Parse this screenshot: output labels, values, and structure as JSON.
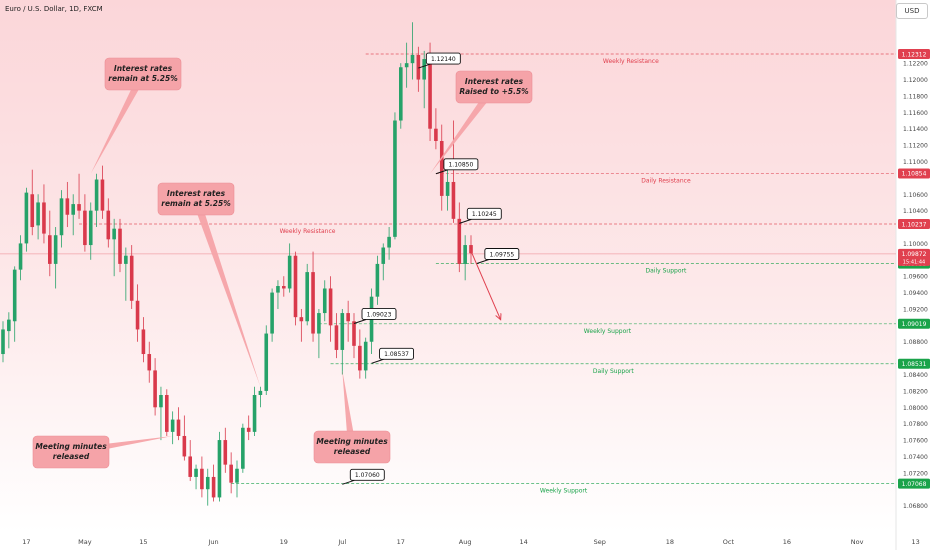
{
  "header": {
    "title": "Euro / U.S. Dollar, 1D, FXCM",
    "currency": "USD"
  },
  "chart_data": {
    "type": "candlestick",
    "symbol": "EURUSD",
    "ylim": [
      1.066,
      1.128
    ],
    "price_ticks": [
      "1.12200",
      "1.12000",
      "1.11800",
      "1.11600",
      "1.11400",
      "1.11200",
      "1.11000",
      "1.10800",
      "1.10600",
      "1.10400",
      "1.10200",
      "1.10000",
      "1.09800",
      "1.09600",
      "1.09400",
      "1.09200",
      "1.09000",
      "1.08800",
      "1.08600",
      "1.08400",
      "1.08200",
      "1.08000",
      "1.07800",
      "1.07600",
      "1.07400",
      "1.07200",
      "1.07000",
      "1.06800"
    ],
    "time_ticks": [
      {
        "label": "17",
        "bar": 4
      },
      {
        "label": "May",
        "bar": 14
      },
      {
        "label": "15",
        "bar": 24
      },
      {
        "label": "Jun",
        "bar": 36
      },
      {
        "label": "19",
        "bar": 48
      },
      {
        "label": "Jul",
        "bar": 58
      },
      {
        "label": "17",
        "bar": 68
      },
      {
        "label": "Aug",
        "bar": 79
      },
      {
        "label": "14",
        "bar": 89
      },
      {
        "label": "Sep",
        "bar": 102
      },
      {
        "label": "18",
        "bar": 114
      },
      {
        "label": "Oct",
        "bar": 124
      },
      {
        "label": "16",
        "bar": 134
      },
      {
        "label": "Nov",
        "bar": 146
      },
      {
        "label": "13",
        "bar": 156
      }
    ],
    "candles": [
      [
        1.0865,
        1.0905,
        1.0855,
        1.0895
      ],
      [
        1.0893,
        1.0916,
        1.0872,
        1.0907
      ],
      [
        1.0905,
        1.0972,
        1.088,
        1.0968
      ],
      [
        1.0968,
        1.101,
        1.0955,
        1.1
      ],
      [
        1.1,
        1.1068,
        1.099,
        1.1062
      ],
      [
        1.106,
        1.109,
        1.101,
        1.102
      ],
      [
        1.1022,
        1.106,
        1.1005,
        1.105
      ],
      [
        1.105,
        1.1072,
        1.1,
        1.1012
      ],
      [
        1.101,
        1.104,
        1.096,
        1.0975
      ],
      [
        1.0975,
        1.102,
        1.0945,
        1.101
      ],
      [
        1.101,
        1.1065,
        1.0995,
        1.1055
      ],
      [
        1.1055,
        1.1075,
        1.102,
        1.1035
      ],
      [
        1.1035,
        1.106,
        1.101,
        1.1048
      ],
      [
        1.1048,
        1.1085,
        1.103,
        1.104
      ],
      [
        1.104,
        1.106,
        1.099,
        1.0998
      ],
      [
        1.0998,
        1.105,
        1.098,
        1.104
      ],
      [
        1.104,
        1.1085,
        1.102,
        1.1078
      ],
      [
        1.1078,
        1.1095,
        1.103,
        1.104
      ],
      [
        1.104,
        1.1055,
        1.0995,
        1.1005
      ],
      [
        1.1005,
        1.103,
        1.096,
        1.1018
      ],
      [
        1.1018,
        1.103,
        1.0965,
        1.0975
      ],
      [
        1.0975,
        1.0995,
        1.093,
        1.0985
      ],
      [
        1.0985,
        1.0998,
        1.092,
        1.093
      ],
      [
        1.093,
        1.095,
        1.088,
        1.0895
      ],
      [
        1.0895,
        1.091,
        1.0855,
        1.0865
      ],
      [
        1.0865,
        1.088,
        1.083,
        1.0845
      ],
      [
        1.0845,
        1.086,
        1.079,
        1.08
      ],
      [
        1.08,
        1.0825,
        1.076,
        1.0815
      ],
      [
        1.0815,
        1.0822,
        1.0765,
        1.077
      ],
      [
        1.077,
        1.0795,
        1.0755,
        1.0785
      ],
      [
        1.0785,
        1.08,
        1.076,
        1.0765
      ],
      [
        1.0765,
        1.079,
        1.0735,
        1.074
      ],
      [
        1.074,
        1.076,
        1.071,
        1.0715
      ],
      [
        1.0715,
        1.073,
        1.07,
        1.0725
      ],
      [
        1.0725,
        1.074,
        1.069,
        1.07
      ],
      [
        1.07,
        1.0725,
        1.068,
        1.0715
      ],
      [
        1.0715,
        1.073,
        1.0685,
        1.069
      ],
      [
        1.069,
        1.077,
        1.0685,
        1.076
      ],
      [
        1.076,
        1.0775,
        1.072,
        1.073
      ],
      [
        1.073,
        1.0745,
        1.0695,
        1.0708
      ],
      [
        1.0708,
        1.0735,
        1.069,
        1.0725
      ],
      [
        1.0725,
        1.078,
        1.072,
        1.0775
      ],
      [
        1.0775,
        1.079,
        1.076,
        1.077
      ],
      [
        1.077,
        1.0825,
        1.0765,
        1.0815
      ],
      [
        1.0815,
        1.0825,
        1.08,
        1.082
      ],
      [
        1.082,
        1.09,
        1.0815,
        1.089
      ],
      [
        1.089,
        1.0945,
        1.088,
        1.094
      ],
      [
        1.094,
        1.0955,
        1.092,
        1.0948
      ],
      [
        1.0948,
        1.096,
        1.0935,
        1.0945
      ],
      [
        1.0945,
        1.1,
        1.094,
        1.0985
      ],
      [
        1.0985,
        1.099,
        1.09,
        1.091
      ],
      [
        1.091,
        1.092,
        1.088,
        1.0905
      ],
      [
        1.0905,
        1.0975,
        1.09,
        1.0965
      ],
      [
        1.0965,
        1.099,
        1.088,
        1.089
      ],
      [
        1.089,
        1.092,
        1.086,
        1.0915
      ],
      [
        1.0915,
        1.0955,
        1.0905,
        1.0945
      ],
      [
        1.0945,
        1.096,
        1.088,
        1.09
      ],
      [
        1.09,
        1.0915,
        1.086,
        1.087
      ],
      [
        1.087,
        1.092,
        1.084,
        1.0915
      ],
      [
        1.0915,
        1.093,
        1.088,
        1.0905
      ],
      [
        1.0905,
        1.0915,
        1.086,
        1.0875
      ],
      [
        1.0875,
        1.0895,
        1.0835,
        1.0845
      ],
      [
        1.0845,
        1.0885,
        1.0835,
        1.088
      ],
      [
        1.088,
        1.0945,
        1.0865,
        1.0935
      ],
      [
        1.0935,
        1.0985,
        1.0925,
        1.0975
      ],
      [
        1.0975,
        1.1,
        1.0955,
        1.0995
      ],
      [
        1.0995,
        1.102,
        1.098,
        1.1008
      ],
      [
        1.1008,
        1.116,
        1.1005,
        1.115
      ],
      [
        1.115,
        1.122,
        1.114,
        1.1215
      ],
      [
        1.1215,
        1.1245,
        1.119,
        1.122
      ],
      [
        1.122,
        1.127,
        1.12,
        1.123
      ],
      [
        1.123,
        1.124,
        1.1185,
        1.12
      ],
      [
        1.12,
        1.1235,
        1.1165,
        1.1225
      ],
      [
        1.1225,
        1.1245,
        1.1125,
        1.114
      ],
      [
        1.114,
        1.1165,
        1.1115,
        1.1125
      ],
      [
        1.1125,
        1.1145,
        1.104,
        1.1058
      ],
      [
        1.1058,
        1.1095,
        1.104,
        1.1075
      ],
      [
        1.1075,
        1.115,
        1.1025,
        1.103
      ],
      [
        1.103,
        1.105,
        1.0965,
        1.0975
      ],
      [
        1.0975,
        1.101,
        1.0955,
        1.0998
      ],
      [
        1.0998,
        1.101,
        1.0975,
        1.0988
      ]
    ],
    "levels": [
      {
        "value": 1.12312,
        "badge": "1.12312",
        "color": "#e0404f",
        "label": "Weekly Resistance",
        "x1": 62
      },
      {
        "value": 1.10854,
        "badge": "1.10854",
        "color": "#e0404f",
        "label": "Daily Resistance",
        "x1": 74
      },
      {
        "value": 1.10237,
        "badge": "1.10237",
        "color": "#e0404f",
        "label": "Weekly Resistance",
        "x1": 13
      },
      {
        "value": 1.09753,
        "badge": "1.09753",
        "color": "#1aa34a",
        "label": "Daily Support",
        "x1": 74
      },
      {
        "value": 1.09019,
        "badge": "1.09019",
        "color": "#1aa34a",
        "label": "Weekly Support",
        "x1": 54
      },
      {
        "value": 1.08531,
        "badge": "1.08531",
        "color": "#1aa34a",
        "label": "Daily Support",
        "x1": 56
      },
      {
        "value": 1.07068,
        "badge": "1.07068",
        "color": "#1aa34a",
        "label": "Weekly Support",
        "x1": 39
      }
    ],
    "current_price": {
      "value": 1.09872,
      "badge": "1.09872",
      "countdown": "15:41:44",
      "color": "#e0404f"
    },
    "price_callouts": [
      {
        "text": "1.12140",
        "bar": 71,
        "price": 1.1214
      },
      {
        "text": "1.10850",
        "bar": 74,
        "price": 1.1085
      },
      {
        "text": "1.10245",
        "bar": 78,
        "price": 1.10245
      },
      {
        "text": "1.09755",
        "bar": 81,
        "price": 1.09755
      },
      {
        "text": "1.09023",
        "bar": 60,
        "price": 1.09023
      },
      {
        "text": "1.08537",
        "bar": 63,
        "price": 1.08537
      },
      {
        "text": "1.07060",
        "bar": 58,
        "price": 1.0706
      }
    ],
    "annotations": [
      {
        "text": [
          "Interest rates",
          "remain at 5.25%"
        ],
        "pointer_bar": 15,
        "pointer_price": 1.1085
      },
      {
        "text": [
          "Interest rates",
          "remain at 5.25%"
        ],
        "pointer_bar": 44,
        "pointer_price": 1.0825
      },
      {
        "text": [
          "Interest rates",
          "Raised to +5.5%"
        ],
        "pointer_bar": 73,
        "pointer_price": 1.1085
      },
      {
        "text": [
          "Meeting minutes",
          "released"
        ],
        "pointer_bar": 29,
        "pointer_price": 1.0765
      },
      {
        "text": [
          "Meeting minutes",
          "released"
        ],
        "pointer_bar": 58,
        "pointer_price": 1.0845
      }
    ],
    "projection": {
      "from_bar": 79,
      "from_price": 1.0998,
      "to_bar": 85,
      "to_price": 1.0908,
      "color": "#e0404f"
    },
    "colors": {
      "up": "#26a269",
      "down": "#d9394b",
      "bg_top": "#fbd6d9",
      "bg_bottom": "#ffffff",
      "note_bg": "#f5a3a8",
      "note_border": "#ec8e95"
    }
  }
}
